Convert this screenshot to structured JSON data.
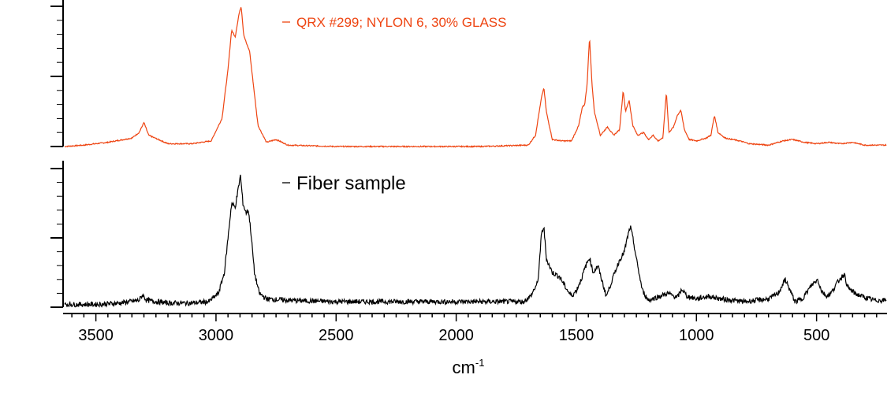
{
  "chart_data": {
    "type": "line",
    "xlabel_base": "cm",
    "xlabel_exp": "-1",
    "x_reversed": true,
    "xlim": [
      3630,
      210
    ],
    "x_ticks": [
      3500,
      3000,
      2500,
      2000,
      1500,
      1000,
      500
    ],
    "x_tick_labels": [
      "3500",
      "3000",
      "2500",
      "2000",
      "1500",
      "1000",
      "500"
    ],
    "grid": false,
    "legend_placement": "inside each panel, top",
    "series": [
      {
        "name": "QRX #299; NYLON 6, 30% GLASS",
        "color": "#ee4411",
        "panel": "top",
        "points": [
          [
            3630,
            0.0
          ],
          [
            3550,
            0.01
          ],
          [
            3450,
            0.03
          ],
          [
            3350,
            0.06
          ],
          [
            3320,
            0.1
          ],
          [
            3300,
            0.17
          ],
          [
            3280,
            0.08
          ],
          [
            3200,
            0.02
          ],
          [
            3100,
            0.02
          ],
          [
            3020,
            0.04
          ],
          [
            2975,
            0.2
          ],
          [
            2950,
            0.55
          ],
          [
            2935,
            0.83
          ],
          [
            2920,
            0.78
          ],
          [
            2905,
            0.94
          ],
          [
            2895,
            1.0
          ],
          [
            2885,
            0.8
          ],
          [
            2870,
            0.72
          ],
          [
            2860,
            0.68
          ],
          [
            2845,
            0.45
          ],
          [
            2825,
            0.15
          ],
          [
            2790,
            0.03
          ],
          [
            2750,
            0.05
          ],
          [
            2700,
            0.01
          ],
          [
            2500,
            0.0
          ],
          [
            2200,
            0.0
          ],
          [
            1900,
            0.0
          ],
          [
            1700,
            0.01
          ],
          [
            1670,
            0.08
          ],
          [
            1645,
            0.35
          ],
          [
            1635,
            0.42
          ],
          [
            1625,
            0.25
          ],
          [
            1600,
            0.05
          ],
          [
            1560,
            0.04
          ],
          [
            1520,
            0.04
          ],
          [
            1490,
            0.15
          ],
          [
            1475,
            0.28
          ],
          [
            1465,
            0.3
          ],
          [
            1455,
            0.45
          ],
          [
            1445,
            0.78
          ],
          [
            1435,
            0.45
          ],
          [
            1425,
            0.25
          ],
          [
            1400,
            0.08
          ],
          [
            1370,
            0.14
          ],
          [
            1345,
            0.08
          ],
          [
            1320,
            0.12
          ],
          [
            1305,
            0.4
          ],
          [
            1295,
            0.25
          ],
          [
            1280,
            0.33
          ],
          [
            1265,
            0.15
          ],
          [
            1245,
            0.08
          ],
          [
            1220,
            0.1
          ],
          [
            1200,
            0.05
          ],
          [
            1180,
            0.08
          ],
          [
            1160,
            0.04
          ],
          [
            1140,
            0.06
          ],
          [
            1125,
            0.39
          ],
          [
            1115,
            0.1
          ],
          [
            1095,
            0.14
          ],
          [
            1080,
            0.22
          ],
          [
            1065,
            0.26
          ],
          [
            1050,
            0.12
          ],
          [
            1030,
            0.05
          ],
          [
            1000,
            0.04
          ],
          [
            960,
            0.06
          ],
          [
            940,
            0.08
          ],
          [
            925,
            0.22
          ],
          [
            910,
            0.1
          ],
          [
            880,
            0.06
          ],
          [
            850,
            0.05
          ],
          [
            820,
            0.04
          ],
          [
            780,
            0.02
          ],
          [
            700,
            0.01
          ],
          [
            640,
            0.04
          ],
          [
            600,
            0.05
          ],
          [
            550,
            0.03
          ],
          [
            500,
            0.02
          ],
          [
            450,
            0.03
          ],
          [
            400,
            0.02
          ],
          [
            350,
            0.03
          ],
          [
            300,
            0.01
          ],
          [
            250,
            0.01
          ],
          [
            210,
            0.01
          ]
        ]
      },
      {
        "name": "Fiber sample",
        "color": "#000000",
        "panel": "bottom",
        "points": [
          [
            3630,
            0.02
          ],
          [
            3500,
            0.02
          ],
          [
            3400,
            0.03
          ],
          [
            3320,
            0.05
          ],
          [
            3305,
            0.09
          ],
          [
            3290,
            0.05
          ],
          [
            3200,
            0.03
          ],
          [
            3100,
            0.03
          ],
          [
            3030,
            0.04
          ],
          [
            2990,
            0.1
          ],
          [
            2965,
            0.25
          ],
          [
            2950,
            0.5
          ],
          [
            2935,
            0.75
          ],
          [
            2920,
            0.72
          ],
          [
            2905,
            0.88
          ],
          [
            2898,
            0.95
          ],
          [
            2888,
            0.75
          ],
          [
            2875,
            0.68
          ],
          [
            2865,
            0.7
          ],
          [
            2855,
            0.55
          ],
          [
            2840,
            0.25
          ],
          [
            2820,
            0.1
          ],
          [
            2790,
            0.06
          ],
          [
            2700,
            0.05
          ],
          [
            2500,
            0.04
          ],
          [
            2300,
            0.04
          ],
          [
            2100,
            0.04
          ],
          [
            1900,
            0.04
          ],
          [
            1720,
            0.04
          ],
          [
            1690,
            0.08
          ],
          [
            1660,
            0.18
          ],
          [
            1645,
            0.53
          ],
          [
            1635,
            0.58
          ],
          [
            1625,
            0.35
          ],
          [
            1600,
            0.25
          ],
          [
            1570,
            0.22
          ],
          [
            1540,
            0.13
          ],
          [
            1520,
            0.08
          ],
          [
            1500,
            0.12
          ],
          [
            1480,
            0.2
          ],
          [
            1460,
            0.3
          ],
          [
            1445,
            0.36
          ],
          [
            1430,
            0.25
          ],
          [
            1410,
            0.3
          ],
          [
            1395,
            0.2
          ],
          [
            1375,
            0.08
          ],
          [
            1360,
            0.15
          ],
          [
            1340,
            0.25
          ],
          [
            1320,
            0.34
          ],
          [
            1300,
            0.4
          ],
          [
            1285,
            0.52
          ],
          [
            1275,
            0.58
          ],
          [
            1265,
            0.5
          ],
          [
            1245,
            0.3
          ],
          [
            1225,
            0.12
          ],
          [
            1200,
            0.05
          ],
          [
            1150,
            0.08
          ],
          [
            1120,
            0.1
          ],
          [
            1080,
            0.07
          ],
          [
            1060,
            0.13
          ],
          [
            1040,
            0.08
          ],
          [
            1000,
            0.06
          ],
          [
            950,
            0.08
          ],
          [
            900,
            0.06
          ],
          [
            850,
            0.05
          ],
          [
            800,
            0.04
          ],
          [
            750,
            0.05
          ],
          [
            700,
            0.06
          ],
          [
            660,
            0.1
          ],
          [
            630,
            0.2
          ],
          [
            615,
            0.14
          ],
          [
            590,
            0.04
          ],
          [
            560,
            0.06
          ],
          [
            520,
            0.16
          ],
          [
            495,
            0.2
          ],
          [
            480,
            0.12
          ],
          [
            460,
            0.08
          ],
          [
            440,
            0.1
          ],
          [
            420,
            0.16
          ],
          [
            400,
            0.21
          ],
          [
            385,
            0.24
          ],
          [
            370,
            0.14
          ],
          [
            340,
            0.1
          ],
          [
            300,
            0.07
          ],
          [
            260,
            0.05
          ],
          [
            230,
            0.05
          ],
          [
            210,
            0.05
          ]
        ]
      }
    ]
  }
}
